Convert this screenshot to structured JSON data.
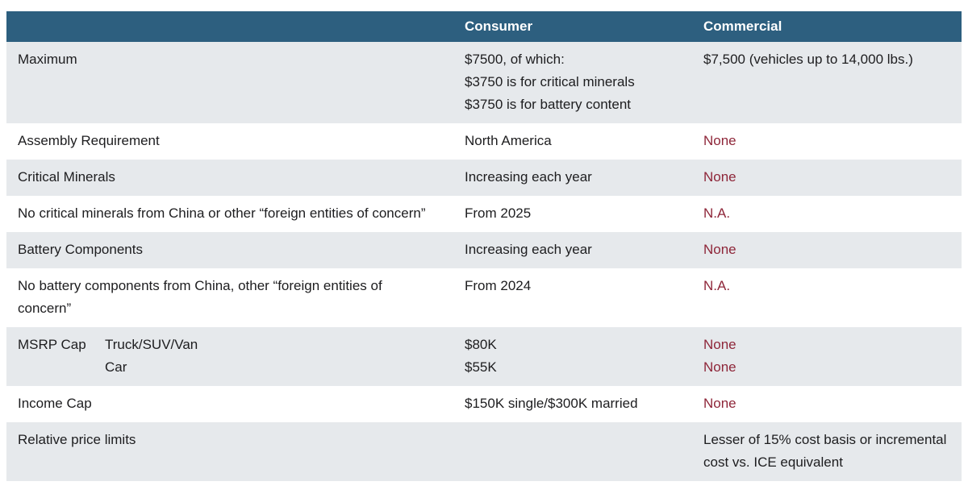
{
  "colors": {
    "header_bg": "#2d5f7f",
    "row_alt_bg": "#e6e9ec",
    "accent_red": "#8e2639",
    "text_color": "#1d1d1f",
    "header_text": "#ffffff"
  },
  "table": {
    "header": {
      "col1": "",
      "col2": "Consumer",
      "col3": "Commercial"
    },
    "rows": [
      {
        "label": "Maximum",
        "consumer_lines": [
          "$7500, of which:",
          "$3750 is for critical minerals",
          "$3750 is for battery content"
        ],
        "commercial_lines": [
          "$7,500 (vehicles up to 14,000 lbs.)"
        ]
      },
      {
        "label": "Assembly Requirement",
        "consumer_lines": [
          "North America"
        ],
        "commercial_lines": [
          "None"
        ]
      },
      {
        "label": "Critical Minerals",
        "consumer_lines": [
          "Increasing each year"
        ],
        "commercial_lines": [
          "None"
        ]
      },
      {
        "label": "No critical minerals from China or other “foreign entities of concern”",
        "consumer_lines": [
          "From 2025"
        ],
        "commercial_lines": [
          "N.A."
        ]
      },
      {
        "label": "Battery Components",
        "consumer_lines": [
          "Increasing each year"
        ],
        "commercial_lines": [
          "None"
        ]
      },
      {
        "label": "No battery components from China, other “foreign entities of concern”",
        "consumer_lines": [
          "From 2024"
        ],
        "commercial_lines": [
          "N.A."
        ]
      },
      {
        "label": "MSRP Cap",
        "sublabels": [
          "Truck/SUV/Van",
          "Car"
        ],
        "consumer_lines": [
          "$80K",
          "$55K"
        ],
        "commercial_lines": [
          "None",
          "None"
        ]
      },
      {
        "label": "Income Cap",
        "consumer_lines": [
          "$150K single/$300K married"
        ],
        "commercial_lines": [
          "None"
        ]
      },
      {
        "label": "Relative price limits",
        "consumer_lines": [],
        "commercial_lines": [
          "Lesser of 15% cost basis or incremental cost vs. ICE equivalent"
        ]
      }
    ]
  }
}
